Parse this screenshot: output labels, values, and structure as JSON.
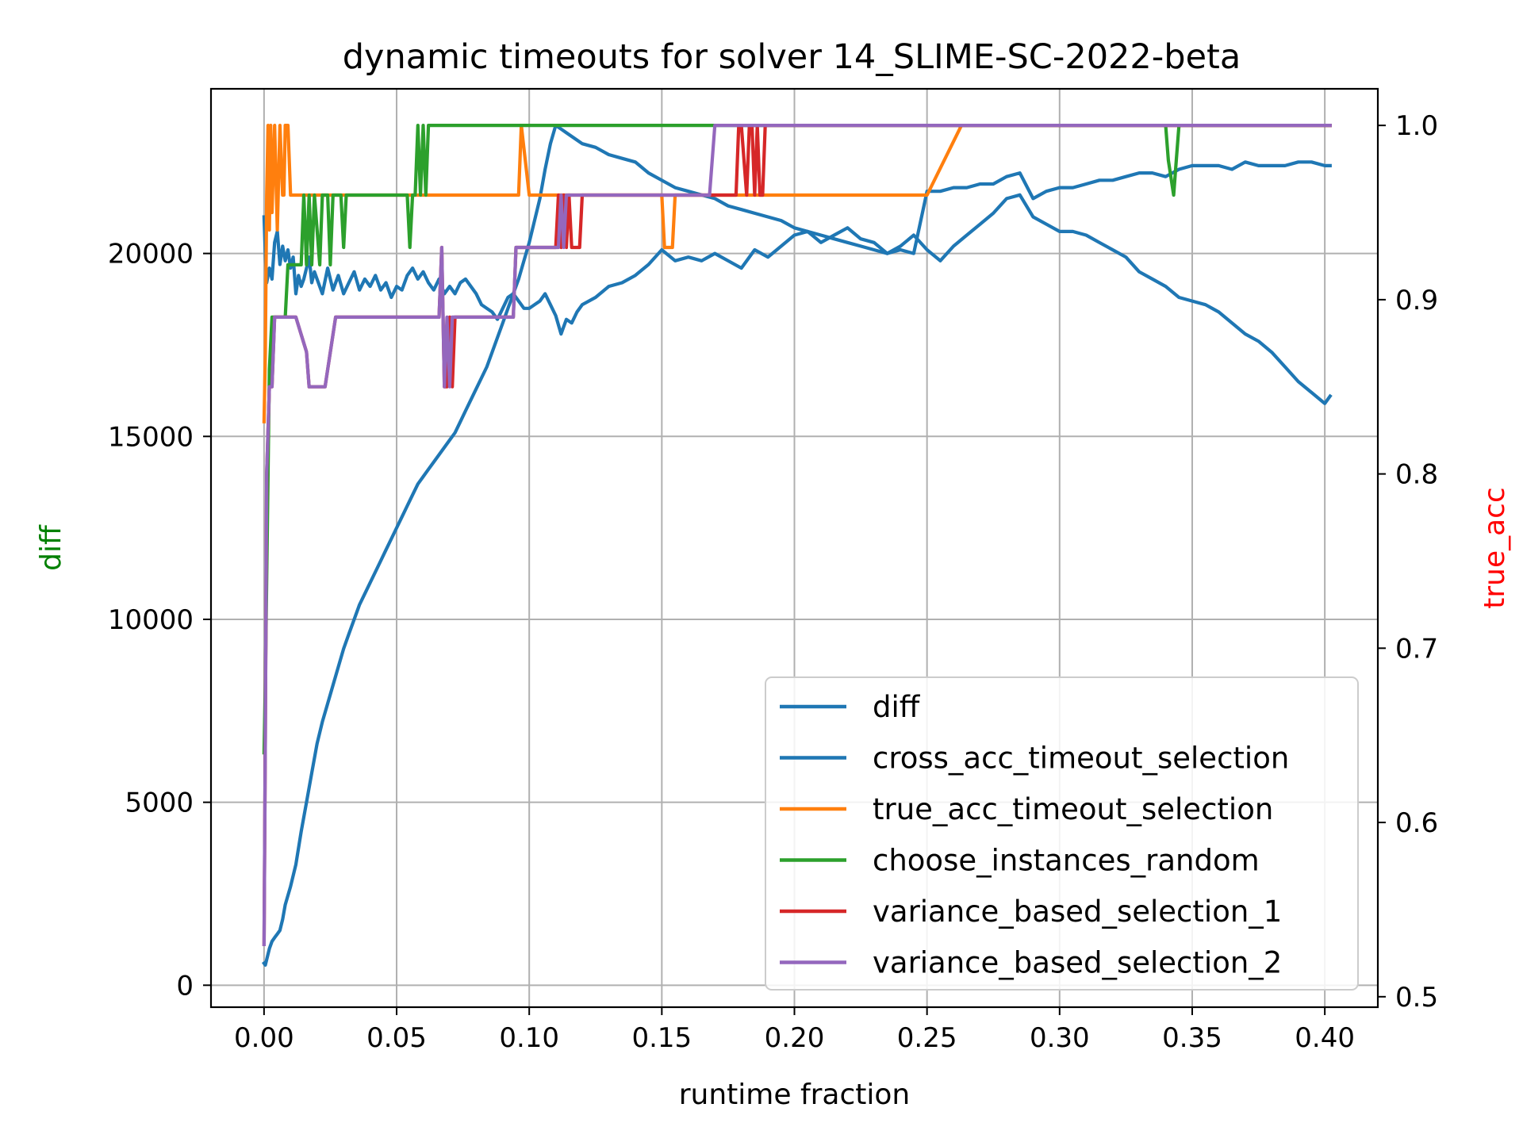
{
  "chart_data": {
    "type": "line",
    "title": "dynamic timeouts for solver 14_SLIME-SC-2022-beta",
    "xlabel": "runtime fraction",
    "ylabel_left": "diff",
    "ylabel_right": "true_acc",
    "colors": {
      "left_label": "#008000",
      "right_label": "#ff0000"
    },
    "xlim": [
      -0.02,
      0.42
    ],
    "ylim_left": [
      -600,
      24500
    ],
    "ylim_right": [
      0.494,
      1.021
    ],
    "xticks": [
      0.0,
      0.05,
      0.1,
      0.15,
      0.2,
      0.25,
      0.3,
      0.35,
      0.4
    ],
    "xtick_labels": [
      "0.00",
      "0.05",
      "0.10",
      "0.15",
      "0.20",
      "0.25",
      "0.30",
      "0.35",
      "0.40"
    ],
    "yticks_left": [
      0,
      5000,
      10000,
      15000,
      20000
    ],
    "ytick_labels_left": [
      "0",
      "5000",
      "10000",
      "15000",
      "20000"
    ],
    "yticks_right": [
      0.5,
      0.6,
      0.7,
      0.8,
      0.9,
      1.0
    ],
    "ytick_labels_right": [
      "0.5",
      "0.6",
      "0.7",
      "0.8",
      "0.9",
      "1.0"
    ],
    "grid": true,
    "legend_position": "lower-right",
    "series": [
      {
        "name": "diff",
        "axis": "left",
        "color": "#1f77b4",
        "x": [
          0.0,
          0.0005,
          0.001,
          0.002,
          0.003,
          0.004,
          0.005,
          0.006,
          0.007,
          0.008,
          0.01,
          0.012,
          0.014,
          0.016,
          0.018,
          0.02,
          0.022,
          0.024,
          0.026,
          0.028,
          0.03,
          0.032,
          0.034,
          0.036,
          0.038,
          0.04,
          0.042,
          0.044,
          0.046,
          0.048,
          0.05,
          0.052,
          0.054,
          0.056,
          0.058,
          0.06,
          0.062,
          0.064,
          0.066,
          0.068,
          0.07,
          0.072,
          0.074,
          0.076,
          0.078,
          0.08,
          0.082,
          0.084,
          0.086,
          0.088,
          0.09,
          0.092,
          0.094,
          0.096,
          0.098,
          0.1,
          0.102,
          0.104,
          0.106,
          0.108,
          0.11,
          0.112,
          0.114,
          0.116,
          0.118,
          0.12,
          0.125,
          0.13,
          0.135,
          0.14,
          0.145,
          0.15,
          0.155,
          0.16,
          0.165,
          0.17,
          0.175,
          0.18,
          0.185,
          0.19,
          0.195,
          0.2,
          0.205,
          0.21,
          0.215,
          0.22,
          0.225,
          0.23,
          0.235,
          0.24,
          0.245,
          0.25,
          0.255,
          0.26,
          0.265,
          0.27,
          0.275,
          0.28,
          0.285,
          0.29,
          0.295,
          0.3,
          0.305,
          0.31,
          0.315,
          0.32,
          0.325,
          0.33,
          0.335,
          0.34,
          0.345,
          0.35,
          0.355,
          0.36,
          0.365,
          0.37,
          0.375,
          0.38,
          0.385,
          0.39,
          0.395,
          0.4,
          0.402
        ],
        "y": [
          600,
          550,
          700,
          1000,
          1200,
          1300,
          1400,
          1500,
          1800,
          2200,
          2700,
          3300,
          4200,
          5000,
          5800,
          6600,
          7200,
          7700,
          8200,
          8700,
          9200,
          9600,
          10000,
          10400,
          10700,
          11000,
          11300,
          11600,
          11900,
          12200,
          12500,
          12800,
          13100,
          13400,
          13700,
          13900,
          14100,
          14300,
          14500,
          14700,
          14900,
          15100,
          15400,
          15700,
          16000,
          16300,
          16600,
          16900,
          17300,
          17700,
          18100,
          18500,
          18900,
          19300,
          19800,
          20300,
          20900,
          21500,
          22300,
          23000,
          23500,
          23400,
          23300,
          23200,
          23100,
          23000,
          22900,
          22700,
          22600,
          22500,
          22200,
          22000,
          21800,
          21700,
          21600,
          21500,
          21300,
          21200,
          21100,
          21000,
          20900,
          20700,
          20600,
          20500,
          20400,
          20300,
          20200,
          20100,
          20000,
          20100,
          20000,
          21700,
          21700,
          21800,
          21800,
          21900,
          21900,
          22100,
          22200,
          21500,
          21700,
          21800,
          21800,
          21900,
          22000,
          22000,
          22100,
          22200,
          22200,
          22100,
          22300,
          22400,
          22400,
          22400,
          22300,
          22500,
          22400,
          22400,
          22400,
          22500,
          22500,
          22400,
          22400
        ]
      },
      {
        "name": "cross_acc_timeout_selection",
        "axis": "left",
        "color": "#1f77b4",
        "x": [
          0.0,
          0.0005,
          0.001,
          0.002,
          0.003,
          0.004,
          0.005,
          0.006,
          0.007,
          0.008,
          0.009,
          0.01,
          0.011,
          0.012,
          0.013,
          0.014,
          0.015,
          0.016,
          0.017,
          0.018,
          0.019,
          0.02,
          0.022,
          0.024,
          0.026,
          0.028,
          0.03,
          0.032,
          0.034,
          0.036,
          0.038,
          0.04,
          0.042,
          0.044,
          0.046,
          0.048,
          0.05,
          0.052,
          0.054,
          0.056,
          0.058,
          0.06,
          0.062,
          0.064,
          0.066,
          0.068,
          0.07,
          0.072,
          0.074,
          0.076,
          0.078,
          0.08,
          0.082,
          0.084,
          0.086,
          0.088,
          0.09,
          0.092,
          0.094,
          0.096,
          0.098,
          0.1,
          0.102,
          0.104,
          0.106,
          0.108,
          0.11,
          0.112,
          0.114,
          0.116,
          0.118,
          0.12,
          0.125,
          0.13,
          0.135,
          0.14,
          0.145,
          0.15,
          0.155,
          0.16,
          0.165,
          0.17,
          0.175,
          0.18,
          0.185,
          0.19,
          0.195,
          0.2,
          0.205,
          0.21,
          0.215,
          0.22,
          0.225,
          0.23,
          0.235,
          0.24,
          0.245,
          0.25,
          0.255,
          0.26,
          0.265,
          0.27,
          0.275,
          0.28,
          0.285,
          0.29,
          0.295,
          0.3,
          0.305,
          0.31,
          0.315,
          0.32,
          0.325,
          0.33,
          0.335,
          0.34,
          0.345,
          0.35,
          0.355,
          0.36,
          0.365,
          0.37,
          0.375,
          0.38,
          0.385,
          0.39,
          0.395,
          0.4,
          0.402
        ],
        "y": [
          21000,
          20000,
          19200,
          19600,
          19300,
          20300,
          20600,
          19700,
          20200,
          19800,
          20100,
          19600,
          19900,
          18900,
          19400,
          19100,
          19300,
          19600,
          19900,
          19200,
          19500,
          19300,
          18900,
          19600,
          19000,
          19400,
          18900,
          19200,
          19500,
          19000,
          19300,
          19100,
          19400,
          19000,
          19200,
          18800,
          19100,
          19000,
          19400,
          19600,
          19300,
          19500,
          19200,
          19000,
          19300,
          18900,
          19100,
          18900,
          19200,
          19300,
          19100,
          18900,
          18600,
          18500,
          18400,
          18200,
          18500,
          18800,
          18900,
          18700,
          18500,
          18500,
          18600,
          18700,
          18900,
          18600,
          18300,
          17800,
          18200,
          18100,
          18400,
          18600,
          18800,
          19100,
          19200,
          19400,
          19700,
          20100,
          19800,
          19900,
          19800,
          20000,
          19800,
          19600,
          20100,
          19900,
          20200,
          20500,
          20600,
          20300,
          20500,
          20700,
          20400,
          20300,
          20000,
          20200,
          20500,
          20100,
          19800,
          20200,
          20500,
          20800,
          21100,
          21500,
          21600,
          21000,
          20800,
          20600,
          20600,
          20500,
          20300,
          20100,
          19900,
          19500,
          19300,
          19100,
          18800,
          18700,
          18600,
          18400,
          18100,
          17800,
          17600,
          17300,
          16900,
          16500,
          16200,
          15900,
          16100
        ]
      },
      {
        "name": "true_acc_timeout_selection",
        "axis": "right",
        "color": "#ff7f0e",
        "x": [
          0.0,
          0.0005,
          0.001,
          0.0015,
          0.002,
          0.0025,
          0.003,
          0.004,
          0.005,
          0.006,
          0.007,
          0.0075,
          0.008,
          0.009,
          0.01,
          0.095,
          0.096,
          0.097,
          0.1,
          0.101,
          0.15,
          0.151,
          0.153,
          0.154,
          0.155,
          0.25,
          0.263,
          0.402
        ],
        "y": [
          0.83,
          0.87,
          0.96,
          1.0,
          0.94,
          1.0,
          0.95,
          1.0,
          0.94,
          1.0,
          0.96,
          0.96,
          1.0,
          1.0,
          0.96,
          0.96,
          0.96,
          1.0,
          0.96,
          0.96,
          0.96,
          0.93,
          0.93,
          0.93,
          0.96,
          0.96,
          1.0,
          1.0
        ]
      },
      {
        "name": "choose_instances_random",
        "axis": "right",
        "color": "#2ca02c",
        "x": [
          0.0,
          0.0005,
          0.001,
          0.0015,
          0.002,
          0.003,
          0.004,
          0.008,
          0.009,
          0.014,
          0.015,
          0.016,
          0.017,
          0.018,
          0.019,
          0.021,
          0.022,
          0.024,
          0.025,
          0.026,
          0.029,
          0.03,
          0.031,
          0.054,
          0.055,
          0.056,
          0.057,
          0.058,
          0.059,
          0.06,
          0.061,
          0.062,
          0.063,
          0.1,
          0.17,
          0.34,
          0.341,
          0.343,
          0.344,
          0.345,
          0.402
        ],
        "y": [
          0.64,
          0.68,
          0.74,
          0.8,
          0.86,
          0.89,
          0.89,
          0.89,
          0.92,
          0.92,
          0.96,
          0.92,
          0.96,
          0.92,
          0.96,
          0.92,
          0.96,
          0.96,
          0.92,
          0.96,
          0.96,
          0.93,
          0.96,
          0.96,
          0.93,
          0.96,
          0.96,
          1.0,
          0.96,
          1.0,
          0.96,
          1.0,
          1.0,
          1.0,
          1.0,
          1.0,
          0.98,
          0.96,
          0.98,
          1.0,
          1.0
        ]
      },
      {
        "name": "variance_based_selection_1",
        "axis": "right",
        "color": "#d62728",
        "x": [
          0.0,
          0.0005,
          0.001,
          0.002,
          0.003,
          0.004,
          0.007,
          0.012,
          0.016,
          0.017,
          0.02,
          0.023,
          0.027,
          0.066,
          0.067,
          0.068,
          0.069,
          0.07,
          0.071,
          0.072,
          0.073,
          0.094,
          0.095,
          0.11,
          0.111,
          0.112,
          0.113,
          0.114,
          0.115,
          0.116,
          0.119,
          0.12,
          0.121,
          0.17,
          0.178,
          0.179,
          0.18,
          0.182,
          0.183,
          0.184,
          0.185,
          0.186,
          0.187,
          0.188,
          0.189,
          0.19,
          0.402
        ],
        "y": [
          0.53,
          0.65,
          0.8,
          0.85,
          0.85,
          0.89,
          0.89,
          0.89,
          0.87,
          0.85,
          0.85,
          0.85,
          0.89,
          0.89,
          0.93,
          0.85,
          0.85,
          0.89,
          0.85,
          0.89,
          0.89,
          0.89,
          0.93,
          0.93,
          0.96,
          0.93,
          0.96,
          0.93,
          0.96,
          0.93,
          0.93,
          0.96,
          0.96,
          0.96,
          0.96,
          1.0,
          1.0,
          0.96,
          1.0,
          1.0,
          0.96,
          1.0,
          0.96,
          0.96,
          1.0,
          1.0,
          1.0
        ]
      },
      {
        "name": "variance_based_selection_2",
        "axis": "right",
        "color": "#9467bd",
        "x": [
          0.0,
          0.0005,
          0.001,
          0.002,
          0.003,
          0.004,
          0.007,
          0.012,
          0.016,
          0.017,
          0.02,
          0.023,
          0.027,
          0.066,
          0.067,
          0.068,
          0.069,
          0.07,
          0.071,
          0.072,
          0.073,
          0.094,
          0.095,
          0.11,
          0.111,
          0.112,
          0.113,
          0.114,
          0.115,
          0.116,
          0.119,
          0.12,
          0.121,
          0.168,
          0.17,
          0.402
        ],
        "y": [
          0.53,
          0.65,
          0.8,
          0.85,
          0.85,
          0.89,
          0.89,
          0.89,
          0.87,
          0.85,
          0.85,
          0.85,
          0.89,
          0.89,
          0.93,
          0.85,
          0.89,
          0.85,
          0.89,
          0.89,
          0.89,
          0.89,
          0.93,
          0.93,
          0.93,
          0.96,
          0.93,
          0.96,
          0.96,
          0.96,
          0.96,
          0.96,
          0.96,
          0.96,
          1.0,
          1.0
        ]
      }
    ]
  }
}
